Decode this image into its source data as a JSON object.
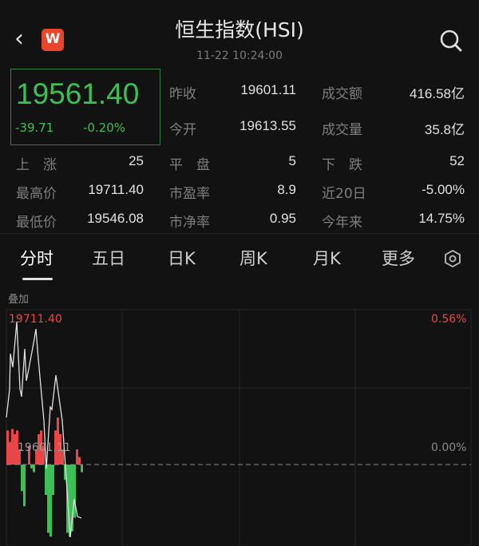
{
  "header": {
    "title": "恒生指数(HSI)",
    "timestamp": "11-22 10:24:00",
    "back_icon": "chevron-left-icon",
    "logo_text": "W",
    "search_icon": "search-icon"
  },
  "quote": {
    "price": "19561.40",
    "change": "-39.71",
    "change_pct": "-0.20%"
  },
  "stats": [
    {
      "label": "昨收",
      "value": "19601.11",
      "label2": "成交额",
      "value2": "416.58亿"
    },
    {
      "label": "今开",
      "value": "19613.55",
      "label2": "成交量",
      "value2": "35.8亿"
    }
  ],
  "stats2": [
    {
      "l1": "上　涨",
      "v1": "25",
      "l2": "平　盘",
      "v2": "5",
      "l3": "下　跌",
      "v3": "52"
    },
    {
      "l1": "最高价",
      "v1": "19711.40",
      "l2": "市盈率",
      "v2": "8.9",
      "l3": "近20日",
      "v3": "-5.00%"
    },
    {
      "l1": "最低价",
      "v1": "19546.08",
      "l2": "市净率",
      "v2": "0.95",
      "l3": "今年来",
      "v3": "14.75%"
    }
  ],
  "tabs": [
    "分时",
    "五日",
    "日K",
    "周K",
    "月K",
    "更多"
  ],
  "settings_icon": "hexagon-settings-icon",
  "chart": {
    "overlay_label": "叠加",
    "top_price": "19711.40",
    "top_pct": "0.56%",
    "zero_pct": "0.00%",
    "prev_close": "19601.11"
  },
  "colors": {
    "up": "#e8474a",
    "down": "#3dbf58"
  },
  "chart_data": {
    "type": "line",
    "prev_close": 19601.11,
    "ylim": [
      19490.82,
      19711.4
    ],
    "price_line": [
      19637.5,
      19659.0,
      19686.7,
      19676.3,
      19711.4,
      19659.6,
      19653.5,
      19690.4,
      19665.8,
      19675.0,
      19694.7,
      19705.8,
      19682.4,
      19635.0,
      19598.0,
      19645.5,
      19643.6,
      19670.1,
      19635.0,
      19545.1,
      19574.6,
      19561.1,
      19559.8
    ],
    "flow_bars": [
      45,
      30,
      47,
      40,
      45,
      20,
      -35,
      -55,
      0,
      25,
      -5,
      -10,
      20,
      40,
      45,
      25,
      -40,
      -90,
      -95,
      -40,
      45,
      62,
      40,
      20,
      -20,
      -90,
      -95,
      -88,
      -70,
      20,
      10,
      -10
    ]
  }
}
